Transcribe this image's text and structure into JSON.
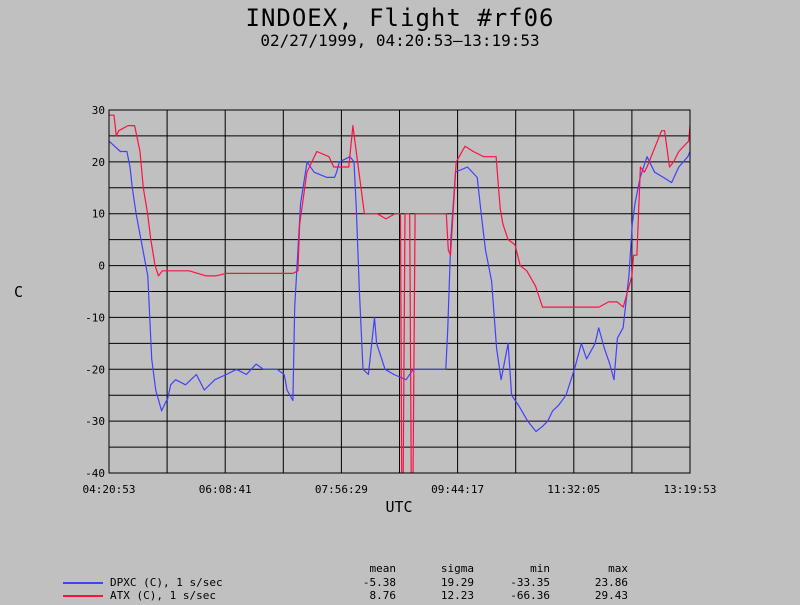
{
  "header": {
    "title": "INDOEX, Flight #rf06",
    "subtitle": "02/27/1999, 04:20:53–13:19:53"
  },
  "chart_data": {
    "type": "line",
    "title": "INDOEX, Flight #rf06",
    "subtitle": "02/27/1999, 04:20:53–13:19:53",
    "xlabel": "UTC",
    "ylabel": "C",
    "x_ticks": [
      "04:20:53",
      "06:08:41",
      "07:56:29",
      "09:44:17",
      "11:32:05",
      "13:19:53"
    ],
    "xlim": [
      "04:20:53",
      "13:19:53"
    ],
    "ylim": [
      -40,
      30
    ],
    "y_ticks": [
      -40,
      -30,
      -20,
      -10,
      0,
      10,
      20,
      30
    ],
    "grid": true,
    "legend": "bottom-left",
    "series": [
      {
        "name": "DPXC (C), 1 s/sec",
        "color": "#4040ff",
        "x": [
          "04:20:53",
          "04:26:10",
          "04:31:30",
          "04:37:30",
          "04:40:20",
          "04:42:30",
          "04:46:00",
          "04:52:20",
          "04:56:50",
          "05:00:30",
          "05:04:10",
          "05:09:40",
          "05:14:20",
          "05:15:00",
          "05:18:10",
          "05:22:40",
          "05:31:50",
          "05:42:00",
          "05:49:20",
          "05:59:10",
          "06:09:40",
          "06:19:10",
          "06:28:20",
          "06:37:20",
          "06:44:10",
          "06:56:50",
          "07:03:20",
          "07:04:20",
          "07:06:00",
          "07:11:30",
          "07:13:10",
          "07:18:40",
          "07:24:40",
          "07:31:10",
          "07:43:00",
          "07:50:10",
          "07:52:00",
          "07:54:40",
          "08:04:30",
          "08:08:10",
          "08:10:20",
          "08:13:10",
          "08:16:30",
          "08:21:30",
          "08:27:10",
          "08:29:10",
          "08:37:00",
          "08:45:10",
          "08:56:30",
          "09:03:10",
          "09:33:20",
          "09:35:10",
          "09:38:00",
          "09:42:20",
          "09:53:20",
          "10:02:30",
          "10:06:10",
          "10:10:10",
          "10:15:50",
          "10:20:30",
          "10:24:40",
          "10:31:10",
          "10:34:20",
          "10:41:00",
          "10:49:20",
          "10:57:00",
          "11:03:10",
          "11:07:50",
          "11:12:30",
          "11:17:40",
          "11:24:50",
          "11:32:40",
          "11:39:10",
          "11:44:00",
          "11:51:50",
          "11:55:10",
          "12:00:30",
          "12:05:30",
          "12:09:20",
          "12:12:30",
          "12:17:50",
          "12:23:10",
          "12:26:20",
          "12:28:50",
          "12:33:40",
          "12:40:00",
          "12:47:00",
          "12:55:10",
          "13:02:50",
          "13:09:30",
          "13:17:50",
          "13:19:53"
        ],
        "values": [
          24,
          23,
          22,
          22,
          19,
          15,
          10,
          3,
          -2,
          -18,
          -24,
          -28,
          -26,
          -26,
          -23,
          -22,
          -23,
          -21,
          -24,
          -22,
          -21,
          -20,
          -21,
          -19,
          -20,
          -20,
          -21,
          -22,
          -24,
          -26,
          -8,
          12,
          20,
          18,
          17,
          17,
          18,
          20,
          21,
          20,
          11,
          -5,
          -20,
          -21,
          -10,
          -15,
          -20,
          -21,
          -22,
          -20,
          -20,
          -12,
          5,
          18,
          19,
          17,
          10,
          3,
          -3,
          -16,
          -22,
          -15,
          -25,
          -27,
          -30,
          -32,
          -31,
          -30,
          -28,
          -27,
          -25,
          -20,
          -15,
          -18,
          -15,
          -12,
          -16,
          -19,
          -22,
          -14,
          -12,
          -2,
          8,
          12,
          17,
          21,
          18,
          17,
          16,
          19,
          21,
          22
        ]
      },
      {
        "name": "ATX (C), 1 s/sec",
        "color": "#ff1040",
        "x": [
          "04:20:53",
          "04:25:30",
          "04:27:40",
          "04:30:00",
          "04:38:30",
          "04:40:00",
          "04:44:40",
          "04:49:40",
          "04:52:40",
          "04:56:40",
          "04:59:40",
          "05:03:40",
          "05:06:50",
          "05:10:20",
          "05:18:10",
          "05:26:00",
          "05:35:10",
          "05:51:10",
          "05:59:40",
          "06:09:40",
          "06:17:40",
          "06:29:10",
          "06:40:00",
          "06:52:10",
          "07:01:20",
          "07:04:30",
          "07:11:40",
          "07:16:10",
          "07:17:50",
          "07:24:30",
          "07:33:40",
          "07:45:00",
          "07:49:20",
          "07:52:30",
          "07:55:50",
          "07:59:20",
          "08:03:20",
          "08:07:10",
          "08:11:30",
          "08:17:50",
          "08:20:30",
          "08:29:40",
          "08:37:50",
          "08:46:10",
          "08:51:20",
          "08:53:00",
          "08:55:30",
          "08:59:50",
          "09:02:00",
          "09:04:50",
          "09:25:10",
          "09:33:50",
          "09:35:40",
          "09:37:40",
          "09:43:00",
          "09:51:10",
          "09:58:50",
          "10:08:30",
          "10:13:20",
          "10:20:00",
          "10:23:50",
          "10:26:20",
          "10:31:10",
          "10:37:30",
          "10:42:20",
          "10:48:30",
          "10:56:40",
          "11:03:00",
          "11:09:40",
          "11:17:40",
          "11:25:10",
          "11:37:00",
          "11:46:00",
          "11:55:20",
          "12:04:20",
          "12:12:20",
          "12:18:00",
          "12:19:20",
          "12:26:00",
          "12:27:30",
          "12:30:40",
          "12:33:50",
          "12:37:30",
          "12:40:00",
          "12:47:40",
          "12:53:30",
          "12:56:20",
          "13:00:50",
          "13:04:40",
          "13:09:30",
          "13:18:40",
          "13:19:53"
        ],
        "values": [
          29,
          29,
          25,
          26,
          27,
          27,
          27,
          22,
          15,
          10,
          5,
          0,
          -2,
          -1,
          -1,
          -1,
          -1,
          -2,
          -2,
          -1.5,
          -1.5,
          -1.5,
          -1.5,
          -1.5,
          -1.5,
          -1.5,
          -1.5,
          -1,
          8,
          18,
          22,
          21,
          19,
          19,
          19,
          19,
          19,
          27,
          20,
          10,
          10,
          10,
          9,
          10,
          10,
          -66,
          10,
          10,
          -66,
          10,
          10,
          10,
          3,
          2,
          20,
          23,
          22,
          21,
          21,
          21,
          11,
          8,
          5,
          4,
          0,
          -1,
          -4,
          -8,
          -8,
          -8,
          -8,
          -8,
          -8,
          -8,
          -7,
          -7,
          -8,
          -7,
          -2,
          2,
          2,
          19,
          18,
          19,
          23,
          26,
          26,
          19,
          20,
          22,
          24,
          27
        ]
      }
    ],
    "stats": {
      "headers": [
        "mean",
        "sigma",
        "min",
        "max"
      ],
      "rows": [
        {
          "name": "DPXC (C), 1 s/sec",
          "mean": "-5.38",
          "sigma": "19.29",
          "min": "-33.35",
          "max": "23.86"
        },
        {
          "name": "ATX (C), 1 s/sec",
          "mean": "8.76",
          "sigma": "12.23",
          "min": "-66.36",
          "max": "29.43"
        }
      ]
    }
  }
}
